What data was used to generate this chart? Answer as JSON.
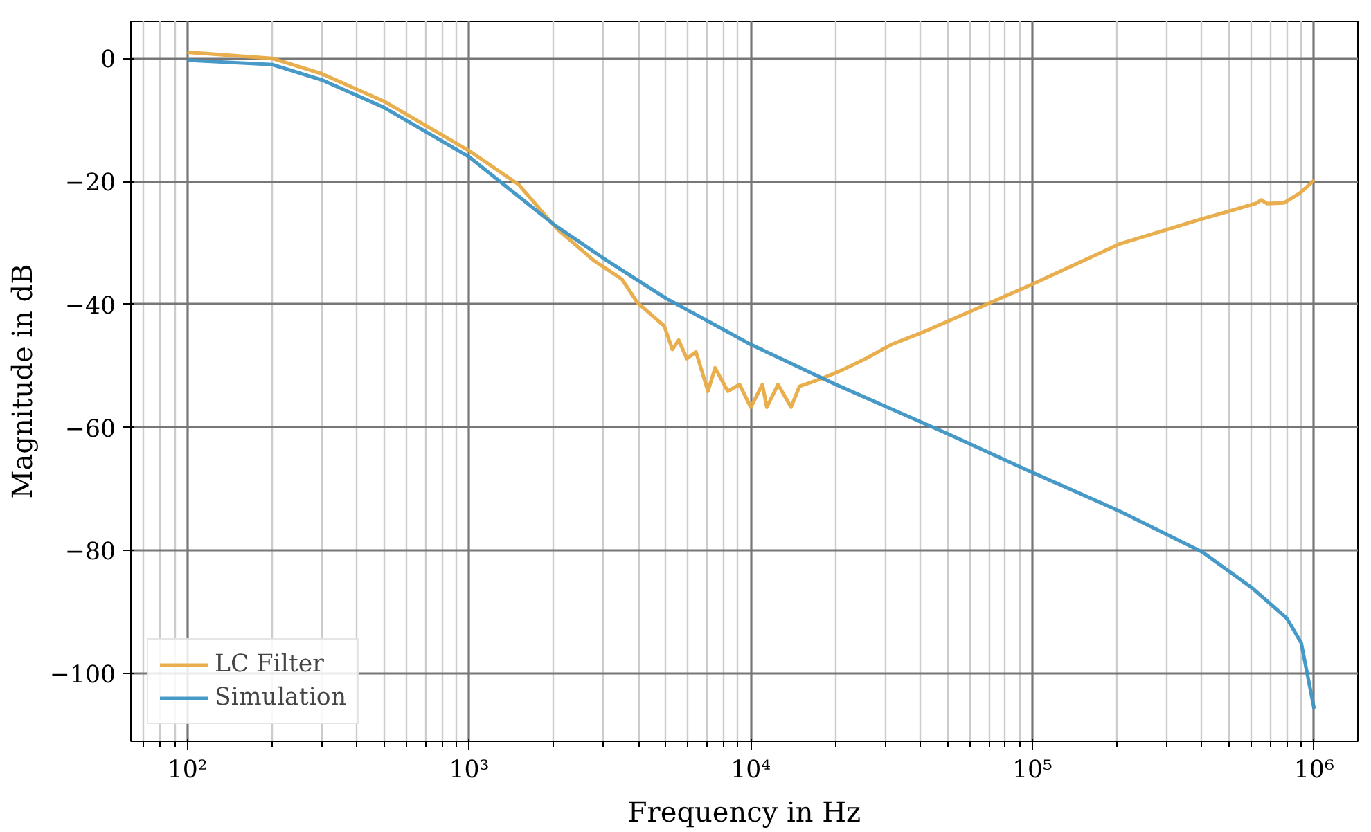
{
  "chart_data": {
    "type": "line",
    "xlabel": "Frequency in Hz",
    "ylabel": "Magnitude in dB",
    "log": "x",
    "grid": true,
    "legend": "bottom left",
    "line_style": "solid",
    "xlim": [
      63,
      1430000
    ],
    "ylim": [
      -111,
      6
    ],
    "xticks": [
      {
        "value": 100,
        "label": "10²"
      },
      {
        "value": 1000,
        "label": "10³"
      },
      {
        "value": 10000,
        "label": "10⁴"
      },
      {
        "value": 100000,
        "label": "10⁵"
      },
      {
        "value": 1000000,
        "label": "10⁶"
      }
    ],
    "yticks": [
      {
        "value": 0,
        "label": "0"
      },
      {
        "value": -20,
        "label": "−20"
      },
      {
        "value": -40,
        "label": "−40"
      },
      {
        "value": -60,
        "label": "−60"
      },
      {
        "value": -80,
        "label": "−80"
      },
      {
        "value": -100,
        "label": "−100"
      }
    ],
    "series": [
      {
        "name": "LC Filter",
        "color": "#e8ab45",
        "x": [
          100,
          200,
          300,
          500,
          1000,
          1500,
          2040,
          2780,
          3490,
          3960,
          4930,
          5270,
          5550,
          5930,
          6390,
          7050,
          7470,
          8290,
          9120,
          10000,
          11000,
          11400,
          12500,
          13900,
          14900,
          17500,
          21000,
          25600,
          31600,
          40400,
          100000,
          203000,
          400000,
          620000,
          650000,
          680000,
          780000,
          890000,
          1000000
        ],
        "values": [
          1,
          0,
          -2.5,
          -7,
          -15,
          -20.5,
          -27.6,
          -32.9,
          -35.9,
          -39.7,
          -43.5,
          -47.3,
          -45.8,
          -48.8,
          -47.7,
          -54.1,
          -50.3,
          -54.1,
          -53,
          -56.7,
          -53,
          -56.7,
          -53,
          -56.7,
          -53.3,
          -52.2,
          -50.7,
          -48.8,
          -46.5,
          -44.6,
          -36.7,
          -30.2,
          -26.1,
          -23.6,
          -23,
          -23.6,
          -23.5,
          -21.9,
          -19.8
        ]
      },
      {
        "name": "Simulation",
        "color": "#3d94c4",
        "x": [
          100,
          200,
          300,
          500,
          1000,
          2000,
          3000,
          5000,
          10000,
          20000,
          50000,
          100000,
          200000,
          400000,
          600000,
          800000,
          900000,
          1000000
        ],
        "values": [
          -0.3,
          -1,
          -3.5,
          -8,
          -16,
          -27,
          -32.5,
          -39,
          -46.5,
          -53,
          -61,
          -67.3,
          -73.4,
          -80.2,
          -86,
          -91,
          -95,
          -105.7
        ]
      }
    ]
  }
}
